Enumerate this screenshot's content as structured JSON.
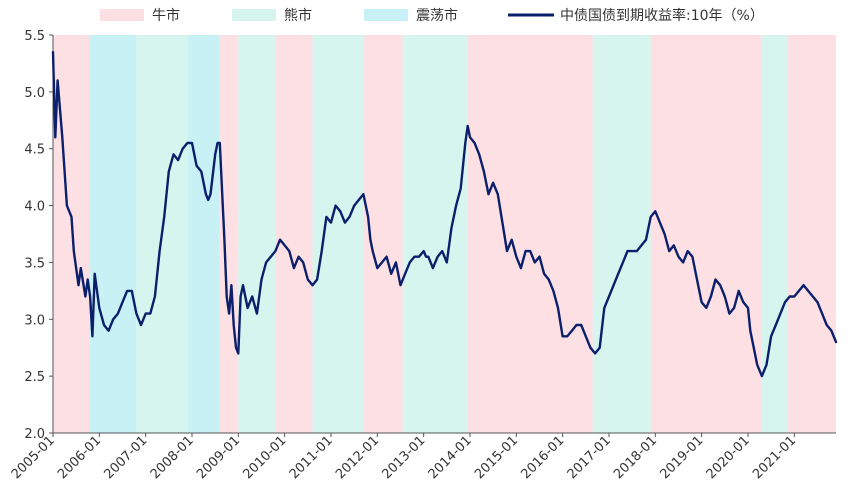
{
  "chart_data": {
    "type": "line",
    "title": "",
    "xlabel": "",
    "ylabel": "",
    "ylim": [
      2.0,
      5.5
    ],
    "yticks": [
      "2.0",
      "2.5",
      "3.0",
      "3.5",
      "4.0",
      "4.5",
      "5.0",
      "5.5"
    ],
    "xlim": [
      2005.0,
      2021.9
    ],
    "xticks": [
      "2005-01",
      "2006-01",
      "2007-01",
      "2008-01",
      "2009-01",
      "2010-01",
      "2011-01",
      "2012-01",
      "2013-01",
      "2014-01",
      "2015-01",
      "2016-01",
      "2017-01",
      "2018-01",
      "2019-01",
      "2020-01",
      "2021-01"
    ],
    "grid": false,
    "legend_position": "top",
    "legend": [
      {
        "name": "牛市",
        "kind": "band",
        "color": "#fde0e4"
      },
      {
        "name": "熊市",
        "kind": "band",
        "color": "#d6f5ee"
      },
      {
        "name": "震荡市",
        "kind": "band",
        "color": "#c8f1f6"
      },
      {
        "name": "中债国债到期收益率:10年（%）",
        "kind": "line",
        "color": "#0b1f6b"
      }
    ],
    "regimes": [
      {
        "start": 2005.0,
        "end": 2005.8,
        "type": "牛市"
      },
      {
        "start": 2005.8,
        "end": 2006.8,
        "type": "震荡市"
      },
      {
        "start": 2006.8,
        "end": 2007.9,
        "type": "熊市"
      },
      {
        "start": 2007.9,
        "end": 2008.6,
        "type": "震荡市"
      },
      {
        "start": 2008.6,
        "end": 2009.0,
        "type": "牛市"
      },
      {
        "start": 2009.0,
        "end": 2009.8,
        "type": "熊市"
      },
      {
        "start": 2009.8,
        "end": 2010.6,
        "type": "牛市"
      },
      {
        "start": 2010.6,
        "end": 2011.7,
        "type": "熊市"
      },
      {
        "start": 2011.7,
        "end": 2012.55,
        "type": "牛市"
      },
      {
        "start": 2012.55,
        "end": 2013.95,
        "type": "熊市"
      },
      {
        "start": 2013.95,
        "end": 2016.65,
        "type": "牛市"
      },
      {
        "start": 2016.65,
        "end": 2017.9,
        "type": "熊市"
      },
      {
        "start": 2017.9,
        "end": 2020.3,
        "type": "牛市"
      },
      {
        "start": 2020.3,
        "end": 2020.85,
        "type": "熊市"
      },
      {
        "start": 2020.85,
        "end": 2021.9,
        "type": "牛市"
      }
    ],
    "series": [
      {
        "name": "中债国债到期收益率:10年（%）",
        "color": "#0b1f6b",
        "points": [
          [
            2005.0,
            5.35
          ],
          [
            2005.05,
            4.6
          ],
          [
            2005.1,
            5.1
          ],
          [
            2005.2,
            4.6
          ],
          [
            2005.3,
            4.0
          ],
          [
            2005.4,
            3.9
          ],
          [
            2005.45,
            3.6
          ],
          [
            2005.55,
            3.3
          ],
          [
            2005.6,
            3.45
          ],
          [
            2005.7,
            3.2
          ],
          [
            2005.75,
            3.35
          ],
          [
            2005.8,
            3.2
          ],
          [
            2005.85,
            2.85
          ],
          [
            2005.9,
            3.4
          ],
          [
            2006.0,
            3.1
          ],
          [
            2006.1,
            2.95
          ],
          [
            2006.2,
            2.9
          ],
          [
            2006.3,
            3.0
          ],
          [
            2006.4,
            3.05
          ],
          [
            2006.5,
            3.15
          ],
          [
            2006.6,
            3.25
          ],
          [
            2006.7,
            3.25
          ],
          [
            2006.8,
            3.05
          ],
          [
            2006.9,
            2.95
          ],
          [
            2007.0,
            3.05
          ],
          [
            2007.1,
            3.05
          ],
          [
            2007.2,
            3.2
          ],
          [
            2007.3,
            3.6
          ],
          [
            2007.4,
            3.9
          ],
          [
            2007.5,
            4.3
          ],
          [
            2007.6,
            4.45
          ],
          [
            2007.7,
            4.4
          ],
          [
            2007.8,
            4.5
          ],
          [
            2007.9,
            4.55
          ],
          [
            2008.0,
            4.55
          ],
          [
            2008.1,
            4.35
          ],
          [
            2008.2,
            4.3
          ],
          [
            2008.3,
            4.1
          ],
          [
            2008.35,
            4.05
          ],
          [
            2008.4,
            4.1
          ],
          [
            2008.5,
            4.45
          ],
          [
            2008.55,
            4.55
          ],
          [
            2008.6,
            4.55
          ],
          [
            2008.7,
            3.7
          ],
          [
            2008.75,
            3.2
          ],
          [
            2008.8,
            3.05
          ],
          [
            2008.85,
            3.3
          ],
          [
            2008.9,
            2.95
          ],
          [
            2008.95,
            2.75
          ],
          [
            2009.0,
            2.7
          ],
          [
            2009.05,
            3.2
          ],
          [
            2009.1,
            3.3
          ],
          [
            2009.2,
            3.1
          ],
          [
            2009.3,
            3.2
          ],
          [
            2009.4,
            3.05
          ],
          [
            2009.5,
            3.35
          ],
          [
            2009.6,
            3.5
          ],
          [
            2009.7,
            3.55
          ],
          [
            2009.8,
            3.6
          ],
          [
            2009.9,
            3.7
          ],
          [
            2010.0,
            3.65
          ],
          [
            2010.1,
            3.6
          ],
          [
            2010.2,
            3.45
          ],
          [
            2010.3,
            3.55
          ],
          [
            2010.4,
            3.5
          ],
          [
            2010.5,
            3.35
          ],
          [
            2010.6,
            3.3
          ],
          [
            2010.7,
            3.35
          ],
          [
            2010.8,
            3.6
          ],
          [
            2010.9,
            3.9
          ],
          [
            2011.0,
            3.85
          ],
          [
            2011.1,
            4.0
          ],
          [
            2011.2,
            3.95
          ],
          [
            2011.3,
            3.85
          ],
          [
            2011.4,
            3.9
          ],
          [
            2011.5,
            4.0
          ],
          [
            2011.6,
            4.05
          ],
          [
            2011.7,
            4.1
          ],
          [
            2011.8,
            3.9
          ],
          [
            2011.85,
            3.7
          ],
          [
            2011.9,
            3.6
          ],
          [
            2012.0,
            3.45
          ],
          [
            2012.1,
            3.5
          ],
          [
            2012.2,
            3.55
          ],
          [
            2012.3,
            3.4
          ],
          [
            2012.4,
            3.5
          ],
          [
            2012.5,
            3.3
          ],
          [
            2012.6,
            3.4
          ],
          [
            2012.7,
            3.5
          ],
          [
            2012.8,
            3.55
          ],
          [
            2012.9,
            3.55
          ],
          [
            2013.0,
            3.6
          ],
          [
            2013.05,
            3.55
          ],
          [
            2013.1,
            3.55
          ],
          [
            2013.2,
            3.45
          ],
          [
            2013.3,
            3.55
          ],
          [
            2013.4,
            3.6
          ],
          [
            2013.5,
            3.5
          ],
          [
            2013.6,
            3.8
          ],
          [
            2013.7,
            4.0
          ],
          [
            2013.8,
            4.15
          ],
          [
            2013.9,
            4.55
          ],
          [
            2013.95,
            4.7
          ],
          [
            2014.0,
            4.6
          ],
          [
            2014.1,
            4.55
          ],
          [
            2014.2,
            4.45
          ],
          [
            2014.3,
            4.3
          ],
          [
            2014.4,
            4.1
          ],
          [
            2014.5,
            4.2
          ],
          [
            2014.6,
            4.1
          ],
          [
            2014.7,
            3.85
          ],
          [
            2014.8,
            3.6
          ],
          [
            2014.9,
            3.7
          ],
          [
            2015.0,
            3.55
          ],
          [
            2015.1,
            3.45
          ],
          [
            2015.2,
            3.6
          ],
          [
            2015.3,
            3.6
          ],
          [
            2015.4,
            3.5
          ],
          [
            2015.5,
            3.55
          ],
          [
            2015.6,
            3.4
          ],
          [
            2015.7,
            3.35
          ],
          [
            2015.8,
            3.25
          ],
          [
            2015.9,
            3.1
          ],
          [
            2016.0,
            2.85
          ],
          [
            2016.1,
            2.85
          ],
          [
            2016.2,
            2.9
          ],
          [
            2016.3,
            2.95
          ],
          [
            2016.4,
            2.95
          ],
          [
            2016.5,
            2.85
          ],
          [
            2016.6,
            2.75
          ],
          [
            2016.7,
            2.7
          ],
          [
            2016.8,
            2.75
          ],
          [
            2016.9,
            3.1
          ],
          [
            2017.0,
            3.2
          ],
          [
            2017.1,
            3.3
          ],
          [
            2017.2,
            3.4
          ],
          [
            2017.3,
            3.5
          ],
          [
            2017.4,
            3.6
          ],
          [
            2017.5,
            3.6
          ],
          [
            2017.6,
            3.6
          ],
          [
            2017.7,
            3.65
          ],
          [
            2017.8,
            3.7
          ],
          [
            2017.9,
            3.9
          ],
          [
            2018.0,
            3.95
          ],
          [
            2018.1,
            3.85
          ],
          [
            2018.2,
            3.75
          ],
          [
            2018.3,
            3.6
          ],
          [
            2018.4,
            3.65
          ],
          [
            2018.5,
            3.55
          ],
          [
            2018.6,
            3.5
          ],
          [
            2018.7,
            3.6
          ],
          [
            2018.8,
            3.55
          ],
          [
            2018.9,
            3.35
          ],
          [
            2019.0,
            3.15
          ],
          [
            2019.1,
            3.1
          ],
          [
            2019.2,
            3.2
          ],
          [
            2019.3,
            3.35
          ],
          [
            2019.4,
            3.3
          ],
          [
            2019.5,
            3.2
          ],
          [
            2019.6,
            3.05
          ],
          [
            2019.7,
            3.1
          ],
          [
            2019.8,
            3.25
          ],
          [
            2019.9,
            3.15
          ],
          [
            2020.0,
            3.1
          ],
          [
            2020.05,
            2.9
          ],
          [
            2020.1,
            2.8
          ],
          [
            2020.2,
            2.6
          ],
          [
            2020.3,
            2.5
          ],
          [
            2020.4,
            2.6
          ],
          [
            2020.5,
            2.85
          ],
          [
            2020.6,
            2.95
          ],
          [
            2020.7,
            3.05
          ],
          [
            2020.8,
            3.15
          ],
          [
            2020.9,
            3.2
          ],
          [
            2021.0,
            3.2
          ],
          [
            2021.1,
            3.25
          ],
          [
            2021.2,
            3.3
          ],
          [
            2021.3,
            3.25
          ],
          [
            2021.4,
            3.2
          ],
          [
            2021.5,
            3.15
          ],
          [
            2021.6,
            3.05
          ],
          [
            2021.7,
            2.95
          ],
          [
            2021.8,
            2.9
          ],
          [
            2021.9,
            2.8
          ]
        ]
      }
    ]
  }
}
